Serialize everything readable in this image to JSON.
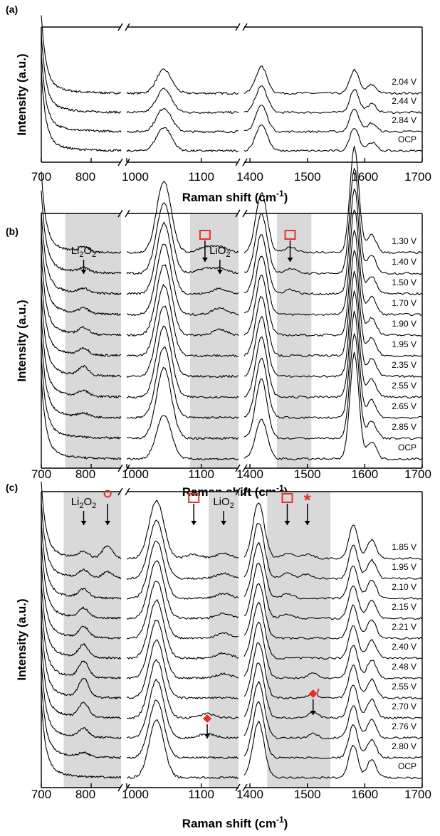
{
  "chart_data": [
    {
      "panel": "(a)",
      "type": "line",
      "xlabel": "Raman shift (cm",
      "xlabel_sup": "-1",
      "xlabel_close": ")",
      "ylabel": "Intensity (a.u.)",
      "x_ticks": [
        "700",
        "800",
        "1000",
        "1100",
        "1400",
        "1500",
        "1600",
        "1700"
      ],
      "x_segments": [
        [
          700,
          860
        ],
        [
          1000,
          1150
        ],
        [
          1390,
          1700
        ]
      ],
      "series": [
        {
          "name": "2.04 V",
          "peaks": [
            [
              1050,
              0.55
            ],
            [
              1420,
              0.62
            ],
            [
              1582,
              0.55
            ],
            [
              1612,
              0.2
            ]
          ]
        },
        {
          "name": "2.44 V",
          "peaks": [
            [
              1050,
              0.55
            ],
            [
              1420,
              0.62
            ],
            [
              1582,
              0.55
            ],
            [
              1612,
              0.2
            ]
          ]
        },
        {
          "name": "2.84 V",
          "peaks": [
            [
              1050,
              0.55
            ],
            [
              1420,
              0.62
            ],
            [
              1582,
              0.55
            ],
            [
              1612,
              0.2
            ]
          ]
        },
        {
          "name": "OCP",
          "peaks": [
            [
              1050,
              0.55
            ],
            [
              1420,
              0.62
            ],
            [
              1582,
              0.55
            ],
            [
              1612,
              0.2
            ]
          ]
        }
      ],
      "shaded_regions": [],
      "annotations": []
    },
    {
      "panel": "(b)",
      "type": "line",
      "xlabel": "Raman shift (cm",
      "xlabel_sup": "-1",
      "xlabel_close": ")",
      "ylabel": "Intensity (a.u.)",
      "x_ticks": [
        "700",
        "800",
        "1000",
        "1100",
        "1400",
        "1500",
        "1600",
        "1700"
      ],
      "x_segments": [
        [
          700,
          860
        ],
        [
          1000,
          1150
        ],
        [
          1390,
          1700
        ]
      ],
      "series": [
        {
          "name": "1.30 V",
          "peaks": [
            [
              785,
              0.1
            ],
            [
              1050,
              1.6
            ],
            [
              1105,
              0.12
            ],
            [
              1125,
              0.12
            ],
            [
              1420,
              1.35
            ],
            [
              1470,
              0.12
            ],
            [
              1582,
              2.4
            ],
            [
              1612,
              0.4
            ]
          ]
        },
        {
          "name": "1.40 V",
          "peaks": [
            [
              785,
              0.1
            ],
            [
              1050,
              1.6
            ],
            [
              1105,
              0.1
            ],
            [
              1125,
              0.1
            ],
            [
              1420,
              1.35
            ],
            [
              1470,
              0.1
            ],
            [
              1582,
              2.4
            ],
            [
              1612,
              0.4
            ]
          ]
        },
        {
          "name": "1.50 V",
          "peaks": [
            [
              785,
              0.1
            ],
            [
              1050,
              1.6
            ],
            [
              1125,
              0.12
            ],
            [
              1420,
              1.35
            ],
            [
              1470,
              0.1
            ],
            [
              1582,
              2.4
            ],
            [
              1612,
              0.4
            ]
          ]
        },
        {
          "name": "1.70 V",
          "peaks": [
            [
              785,
              0.12
            ],
            [
              1050,
              1.6
            ],
            [
              1125,
              0.15
            ],
            [
              1420,
              1.35
            ],
            [
              1582,
              2.4
            ],
            [
              1612,
              0.4
            ]
          ]
        },
        {
          "name": "1.90 V",
          "peaks": [
            [
              785,
              0.15
            ],
            [
              1050,
              1.6
            ],
            [
              1125,
              0.12
            ],
            [
              1420,
              1.35
            ],
            [
              1582,
              2.4
            ],
            [
              1612,
              0.4
            ]
          ]
        },
        {
          "name": "1.95 V",
          "peaks": [
            [
              785,
              0.15
            ],
            [
              1050,
              1.6
            ],
            [
              1420,
              1.35
            ],
            [
              1582,
              2.4
            ],
            [
              1612,
              0.4
            ]
          ]
        },
        {
          "name": "2.35 V",
          "peaks": [
            [
              785,
              0.2
            ],
            [
              1050,
              1.6
            ],
            [
              1420,
              1.35
            ],
            [
              1582,
              2.4
            ],
            [
              1612,
              0.4
            ]
          ]
        },
        {
          "name": "2.55 V",
          "peaks": [
            [
              785,
              0.12
            ],
            [
              1050,
              1.6
            ],
            [
              1420,
              1.35
            ],
            [
              1582,
              2.4
            ],
            [
              1612,
              0.4
            ]
          ]
        },
        {
          "name": "2.65 V",
          "peaks": [
            [
              785,
              0.08
            ],
            [
              1050,
              1.6
            ],
            [
              1420,
              1.35
            ],
            [
              1582,
              2.4
            ],
            [
              1612,
              0.4
            ]
          ]
        },
        {
          "name": "2.85 V",
          "peaks": [
            [
              1050,
              1.6
            ],
            [
              1420,
              1.35
            ],
            [
              1582,
              2.4
            ],
            [
              1612,
              0.4
            ]
          ]
        },
        {
          "name": "OCP",
          "peaks": [
            [
              1050,
              1.0
            ],
            [
              1420,
              0.9
            ],
            [
              1582,
              2.4
            ],
            [
              1612,
              0.4
            ]
          ]
        }
      ],
      "shaded_regions": [
        [
          748,
          860
        ],
        [
          1085,
          1150
        ],
        [
          1447,
          1507
        ]
      ],
      "annotations": [
        {
          "label": "Li",
          "sub": "2",
          "label2": "O",
          "sub2": "2",
          "x": 785
        },
        {
          "label": "LiO",
          "sub": "2",
          "x": 1125
        }
      ],
      "markers": [
        {
          "kind": "square",
          "x": 1105
        },
        {
          "kind": "square",
          "x": 1470
        }
      ]
    },
    {
      "panel": "(c)",
      "type": "line",
      "xlabel": "Raman shift (cm",
      "xlabel_sup": "-1",
      "xlabel_close": ")",
      "ylabel": "Intensity (a.u.)",
      "x_ticks": [
        "700",
        "800",
        "1000",
        "1100",
        "1400",
        "1500",
        "1600",
        "1700"
      ],
      "x_segments": [
        [
          700,
          860
        ],
        [
          1000,
          1150
        ],
        [
          1390,
          1700
        ]
      ],
      "series": [
        {
          "name": "1.85 V",
          "peaks": [
            [
              785,
              0.15
            ],
            [
              833,
              0.3
            ],
            [
              1040,
              1.4
            ],
            [
              1090,
              0.1
            ],
            [
              1130,
              0.12
            ],
            [
              1415,
              1.35
            ],
            [
              1465,
              0.12
            ],
            [
              1500,
              0.1
            ],
            [
              1580,
              0.8
            ],
            [
              1612,
              0.45
            ]
          ]
        },
        {
          "name": "1.95 V",
          "peaks": [
            [
              785,
              0.18
            ],
            [
              833,
              0.15
            ],
            [
              1040,
              1.4
            ],
            [
              1130,
              0.12
            ],
            [
              1415,
              1.35
            ],
            [
              1465,
              0.12
            ],
            [
              1500,
              0.1
            ],
            [
              1580,
              0.8
            ],
            [
              1612,
              0.45
            ]
          ]
        },
        {
          "name": "2.10 V",
          "peaks": [
            [
              785,
              0.2
            ],
            [
              1040,
              1.4
            ],
            [
              1130,
              0.12
            ],
            [
              1415,
              1.35
            ],
            [
              1465,
              0.1
            ],
            [
              1580,
              0.8
            ],
            [
              1612,
              0.45
            ]
          ]
        },
        {
          "name": "2.15 V",
          "peaks": [
            [
              785,
              0.22
            ],
            [
              1040,
              1.4
            ],
            [
              1130,
              0.12
            ],
            [
              1415,
              1.35
            ],
            [
              1465,
              0.1
            ],
            [
              1580,
              0.8
            ],
            [
              1612,
              0.45
            ]
          ]
        },
        {
          "name": "2.21 V",
          "peaks": [
            [
              785,
              0.25
            ],
            [
              1040,
              1.4
            ],
            [
              1130,
              0.12
            ],
            [
              1415,
              1.35
            ],
            [
              1580,
              0.8
            ],
            [
              1612,
              0.45
            ]
          ]
        },
        {
          "name": "2.40 V",
          "peaks": [
            [
              785,
              0.3
            ],
            [
              1040,
              1.4
            ],
            [
              1130,
              0.12
            ],
            [
              1415,
              1.35
            ],
            [
              1580,
              0.8
            ],
            [
              1612,
              0.45
            ]
          ]
        },
        {
          "name": "2.48 V",
          "peaks": [
            [
              785,
              0.38
            ],
            [
              1040,
              1.4
            ],
            [
              1130,
              0.1
            ],
            [
              1415,
              1.35
            ],
            [
              1510,
              0.12
            ],
            [
              1580,
              0.8
            ],
            [
              1612,
              0.45
            ]
          ]
        },
        {
          "name": "2.55 V",
          "peaks": [
            [
              785,
              0.45
            ],
            [
              1040,
              1.4
            ],
            [
              1415,
              1.35
            ],
            [
              1510,
              0.12
            ],
            [
              1580,
              0.8
            ],
            [
              1612,
              0.45
            ]
          ]
        },
        {
          "name": "2.70 V",
          "peaks": [
            [
              785,
              0.35
            ],
            [
              1040,
              1.4
            ],
            [
              1108,
              0.1
            ],
            [
              1415,
              1.35
            ],
            [
              1510,
              0.15
            ],
            [
              1580,
              0.8
            ],
            [
              1612,
              0.45
            ]
          ]
        },
        {
          "name": "2.76 V",
          "peaks": [
            [
              785,
              0.2
            ],
            [
              1040,
              1.4
            ],
            [
              1108,
              0.1
            ],
            [
              1415,
              1.35
            ],
            [
              1510,
              0.1
            ],
            [
              1580,
              0.8
            ],
            [
              1612,
              0.45
            ]
          ]
        },
        {
          "name": "2.80 V",
          "peaks": [
            [
              785,
              0.1
            ],
            [
              1040,
              1.4
            ],
            [
              1415,
              1.35
            ],
            [
              1580,
              0.8
            ],
            [
              1612,
              0.45
            ]
          ]
        },
        {
          "name": "OCP",
          "peaks": [
            [
              1040,
              1.4
            ],
            [
              1415,
              1.35
            ],
            [
              1580,
              0.8
            ],
            [
              1612,
              0.45
            ]
          ]
        }
      ],
      "shaded_regions": [
        [
          745,
          860
        ],
        [
          1110,
          1150
        ],
        [
          1430,
          1540
        ]
      ],
      "annotations": [
        {
          "label": "Li",
          "sub": "2",
          "label2": "O",
          "sub2": "2",
          "x": 785
        },
        {
          "label": "LiO",
          "sub": "2",
          "x": 1130
        }
      ],
      "markers": [
        {
          "kind": "circle",
          "x": 833
        },
        {
          "kind": "square",
          "x": 1090
        },
        {
          "kind": "square",
          "x": 1465
        },
        {
          "kind": "asterisk",
          "x": 1500
        },
        {
          "kind": "diamond",
          "x": 1108
        },
        {
          "kind": "diamond-prime",
          "x": 1510
        }
      ]
    }
  ],
  "colors": {
    "line": "#000000",
    "shade": "#d9d9d9",
    "marker": "#e8302a"
  }
}
